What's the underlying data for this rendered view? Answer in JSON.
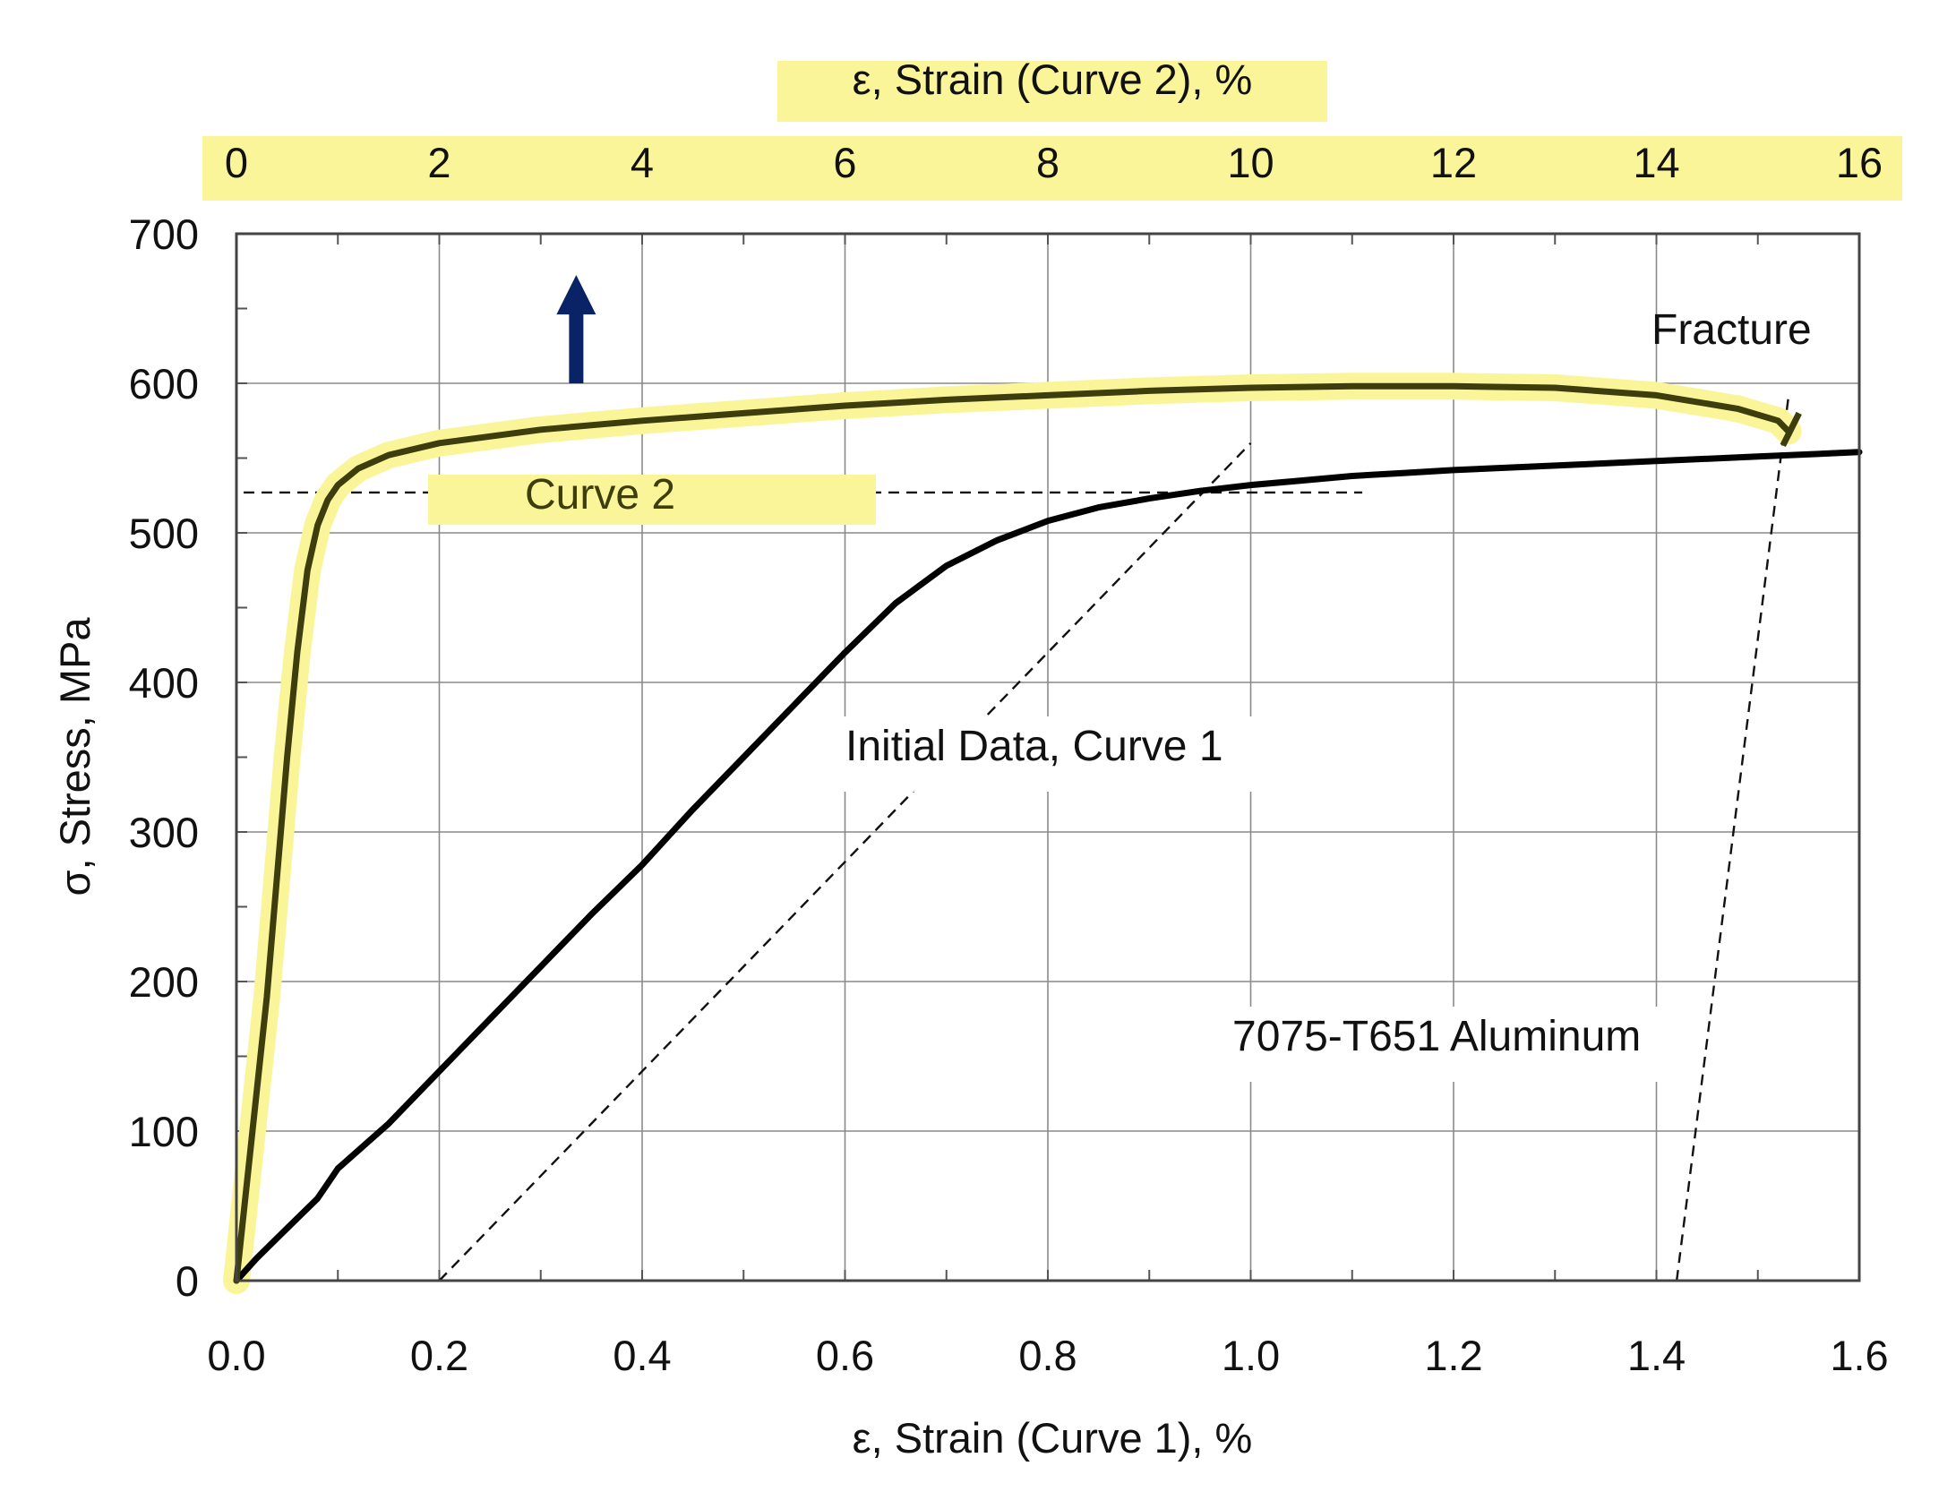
{
  "chart_data": {
    "type": "line",
    "annotation": "7075-T651 Aluminum",
    "xlabel": "ε, Strain (Curve 1), %",
    "x2label": "ε, Strain (Curve 2), %",
    "ylabel": "σ, Stress, MPa",
    "xlim": [
      0,
      1.6
    ],
    "x2lim": [
      0,
      16
    ],
    "ylim": [
      0,
      700
    ],
    "x_ticks": [
      "0.0",
      "0.2",
      "0.4",
      "0.6",
      "0.8",
      "1.0",
      "1.2",
      "1.4",
      "1.6"
    ],
    "x2_ticks": [
      "0",
      "2",
      "4",
      "6",
      "8",
      "10",
      "12",
      "14",
      "16"
    ],
    "y_ticks": [
      "0",
      "100",
      "200",
      "300",
      "400",
      "500",
      "600",
      "700"
    ],
    "grid": true,
    "series": [
      {
        "name": "Initial Data, Curve 1",
        "axis": "bottom",
        "color": "#000000",
        "x": [
          0.0,
          0.02,
          0.05,
          0.08,
          0.1,
          0.15,
          0.2,
          0.25,
          0.3,
          0.35,
          0.4,
          0.45,
          0.5,
          0.55,
          0.6,
          0.65,
          0.7,
          0.75,
          0.8,
          0.85,
          0.9,
          0.95,
          1.0,
          1.05,
          1.1,
          1.15,
          1.2,
          1.3,
          1.4,
          1.5,
          1.6
        ],
        "y": [
          0,
          15,
          35,
          55,
          75,
          105,
          140,
          175,
          210,
          245,
          278,
          315,
          350,
          385,
          420,
          453,
          478,
          495,
          508,
          517,
          523,
          528,
          532,
          535,
          538,
          540,
          542,
          545,
          548,
          551,
          554
        ]
      },
      {
        "name": "Curve 2",
        "axis": "top",
        "color": "#3d3d0e",
        "highlight": "#fbf59a",
        "x": [
          0.0,
          0.3,
          0.5,
          0.6,
          0.7,
          0.8,
          0.9,
          1.0,
          1.2,
          1.5,
          2.0,
          3.0,
          4.0,
          5.0,
          6.0,
          7.0,
          8.0,
          9.0,
          10.0,
          11.0,
          12.0,
          13.0,
          14.0,
          14.8,
          15.2,
          15.3
        ],
        "y": [
          0,
          190,
          350,
          420,
          475,
          505,
          522,
          532,
          543,
          552,
          560,
          569,
          575,
          580,
          585,
          589,
          592,
          595,
          597,
          598,
          598,
          597,
          592,
          583,
          575,
          568
        ]
      }
    ],
    "reference_lines": {
      "horizontal_dashed_y": 527,
      "horizontal_dashed_x2_range": [
        0.0,
        11.1
      ],
      "offset_line_1": {
        "axis": "bottom",
        "points": [
          [
            0.2,
            0
          ],
          [
            1.0,
            560
          ]
        ]
      },
      "offset_line_2": {
        "axis": "bottom",
        "points": [
          [
            1.42,
            0
          ],
          [
            1.53,
            590
          ]
        ]
      }
    },
    "arrow": {
      "x2": 3.35,
      "y_from": 600,
      "y_to": 670,
      "color": "#0a2266"
    },
    "labels": {
      "fracture": "Fracture",
      "curve1": "Initial Data, Curve 1",
      "curve2": "Curve 2",
      "material": "7075-T651 Aluminum"
    }
  }
}
